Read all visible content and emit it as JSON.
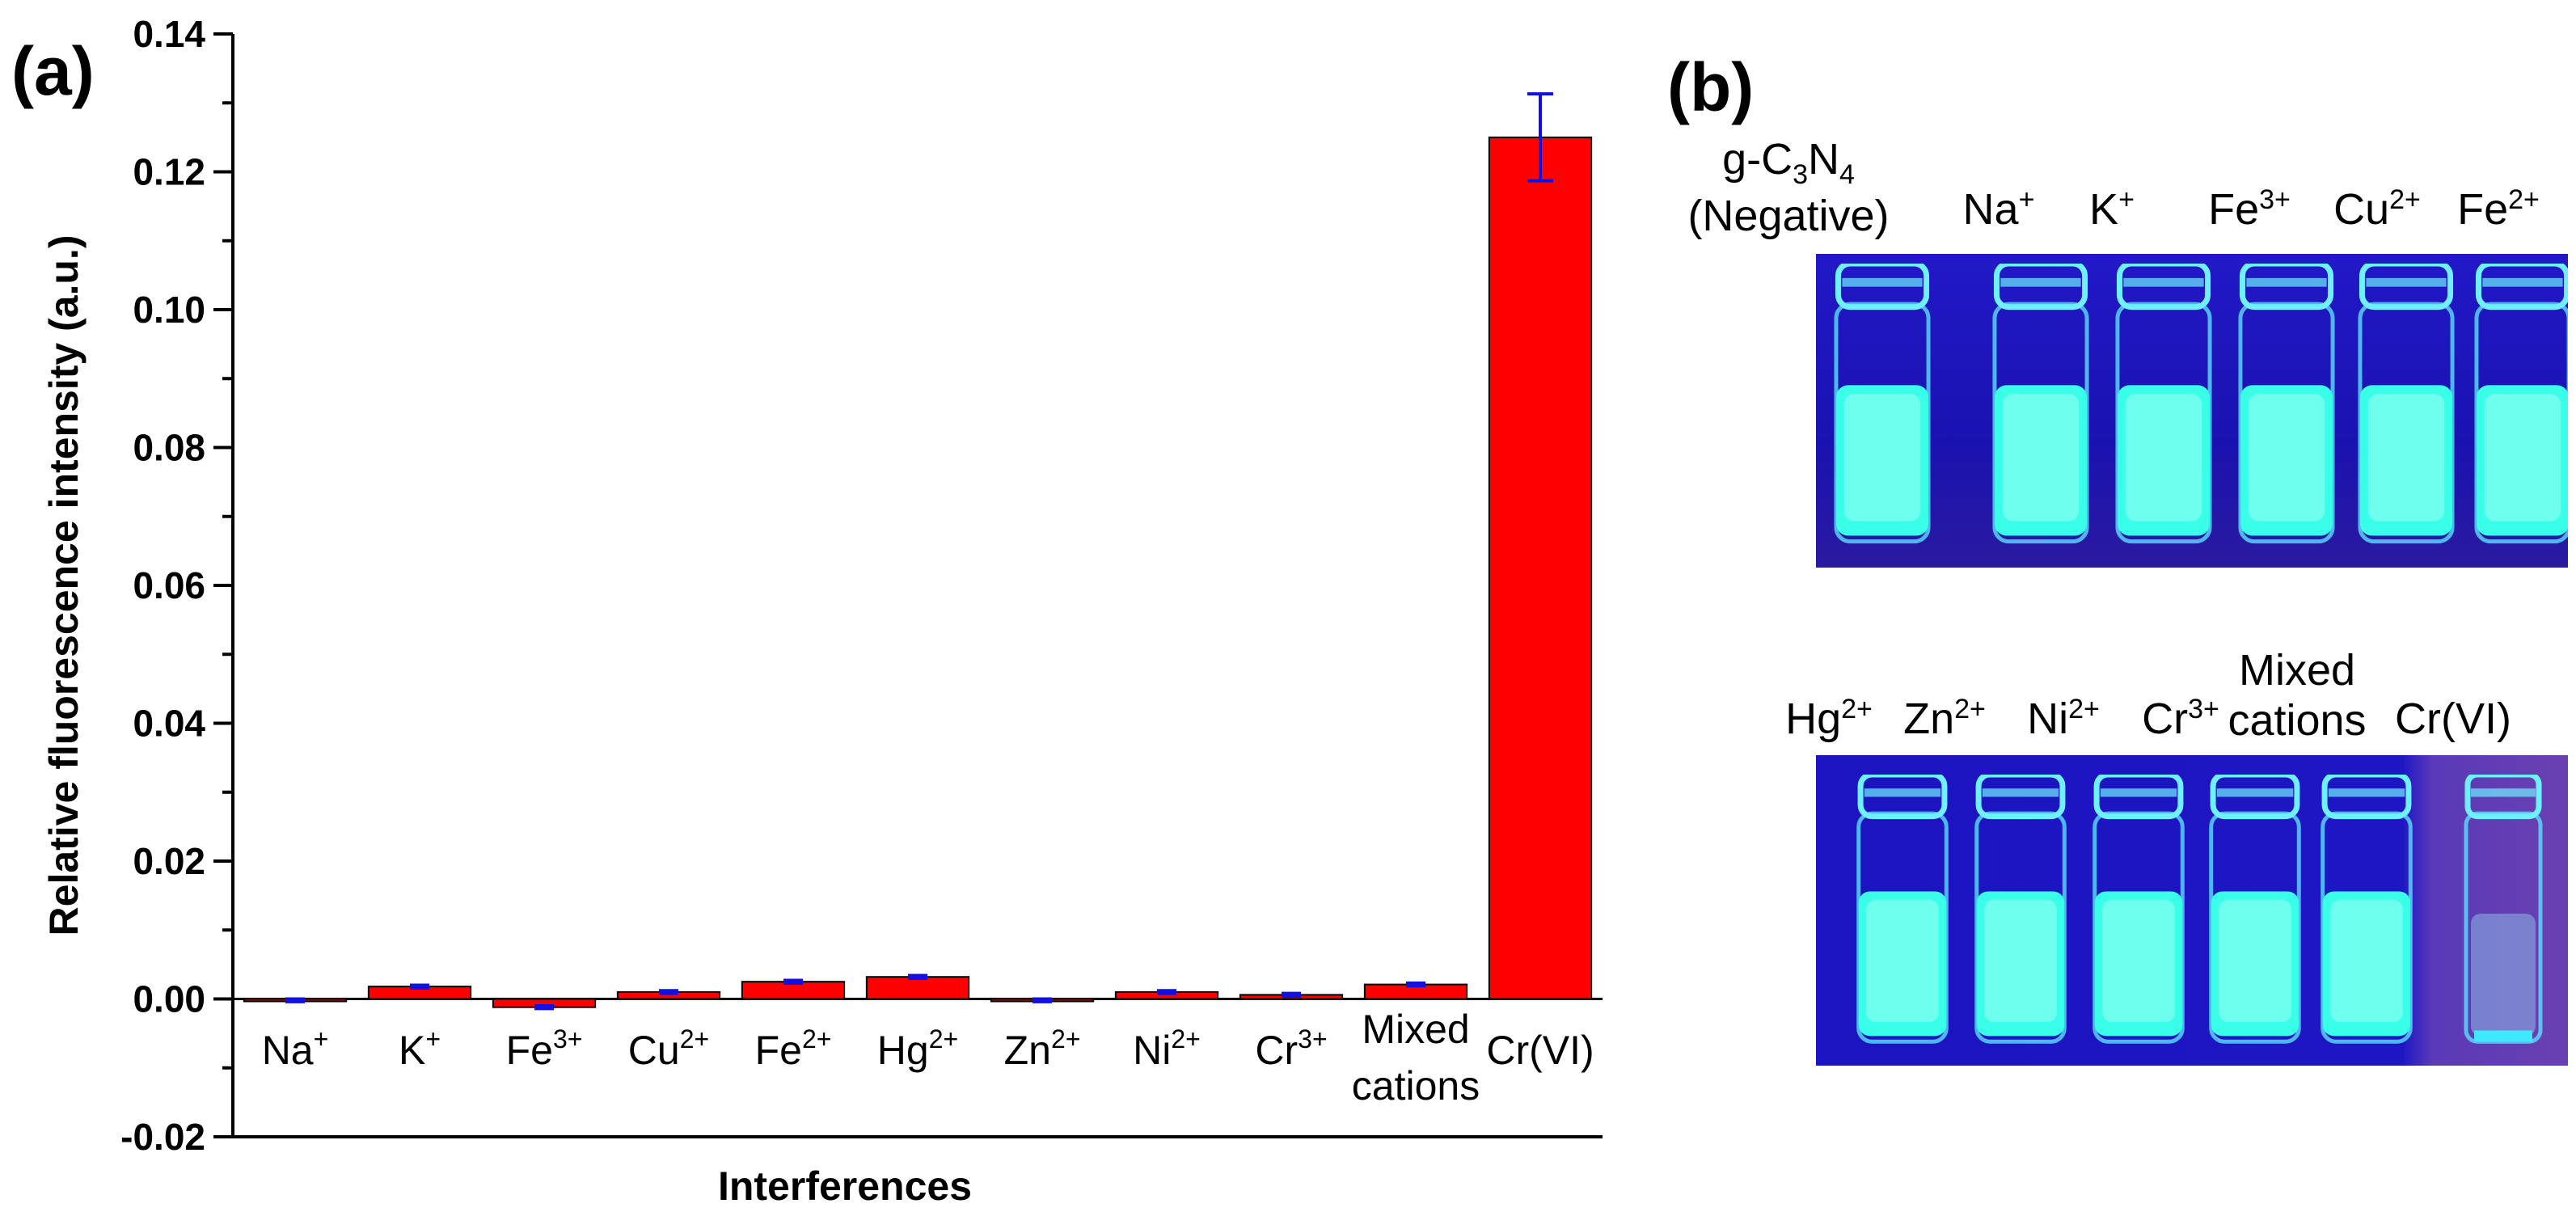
{
  "panel_a_label": "(a)",
  "panel_b_label": "(b)",
  "chart_data": {
    "type": "bar",
    "title": "",
    "xlabel": "Interferences",
    "ylabel": "Relative fluorescence intensity  (a.u.)",
    "ylim": [
      -0.02,
      0.14
    ],
    "yticks": [
      "-0.02",
      "0.00",
      "0.02",
      "0.04",
      "0.06",
      "0.08",
      "0.10",
      "0.12",
      "0.14"
    ],
    "categories": [
      {
        "base": "Na",
        "sup": "+",
        "line2": ""
      },
      {
        "base": "K",
        "sup": "+",
        "line2": ""
      },
      {
        "base": "Fe",
        "sup": "3+",
        "line2": ""
      },
      {
        "base": "Cu",
        "sup": "2+",
        "line2": ""
      },
      {
        "base": "Fe",
        "sup": "2+",
        "line2": ""
      },
      {
        "base": "Hg",
        "sup": "2+",
        "line2": ""
      },
      {
        "base": "Zn",
        "sup": "2+",
        "line2": ""
      },
      {
        "base": "Ni",
        "sup": "2+",
        "line2": ""
      },
      {
        "base": "Cr",
        "sup": "3+",
        "line2": ""
      },
      {
        "base": "Mixed",
        "sup": "",
        "line2": "cations"
      },
      {
        "base": "Cr(VI)",
        "sup": "",
        "line2": ""
      }
    ],
    "values": [
      -0.0002,
      0.0018,
      -0.0012,
      0.001,
      0.0025,
      0.0032,
      -0.0002,
      0.001,
      0.0006,
      0.0021,
      0.125
    ],
    "errors": [
      0.0002,
      0.0002,
      0.0002,
      0.0002,
      0.0002,
      0.0002,
      0.0002,
      0.0002,
      0.0002,
      0.0002,
      0.0063
    ],
    "bar_color": "#ff0000",
    "error_color": "#1010e0"
  },
  "photo_b": {
    "top_labels": [
      {
        "pre": "g-C",
        "sub1": "3",
        "mid": "N",
        "sub2": "4",
        "line2": "(Negative)"
      },
      {
        "base": "Na",
        "sup": "+"
      },
      {
        "base": "K",
        "sup": "+"
      },
      {
        "base": "Fe",
        "sup": "3+"
      },
      {
        "base": "Cu",
        "sup": "2+"
      },
      {
        "base": "Fe",
        "sup": "2+"
      }
    ],
    "bottom_labels": [
      {
        "base": "Hg",
        "sup": "2+",
        "line1": ""
      },
      {
        "base": "Zn",
        "sup": "2+",
        "line1": ""
      },
      {
        "base": "Ni",
        "sup": "2+",
        "line1": ""
      },
      {
        "base": "Cr",
        "sup": "3+",
        "line1": ""
      },
      {
        "base": "cations",
        "sup": "",
        "line1": "Mixed"
      },
      {
        "base": "Cr(VI)",
        "sup": "",
        "line1": ""
      }
    ],
    "background_color": "#1410a8",
    "glow_color": "#39ffe8"
  }
}
